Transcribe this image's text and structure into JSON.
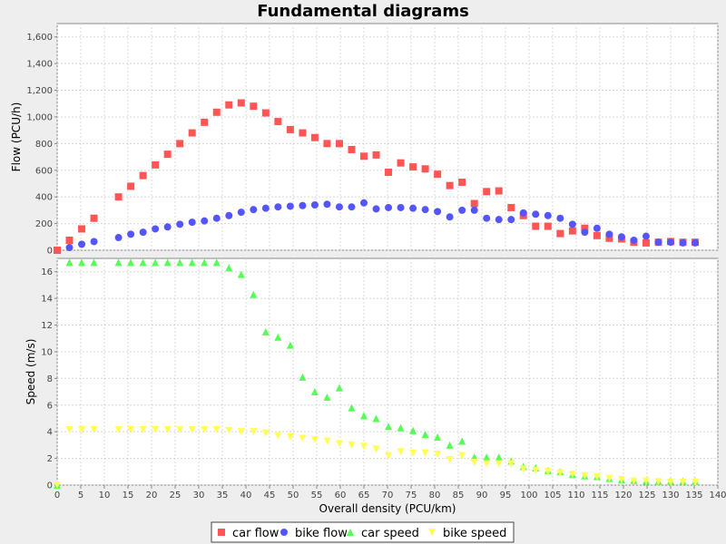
{
  "chart_data": {
    "title": "Fundamental diagrams",
    "type": "scatter",
    "xlabel": "Overall density (PCU/km)",
    "xlim": [
      0,
      140
    ],
    "xticks": [
      "0",
      "5",
      "10",
      "15",
      "20",
      "25",
      "30",
      "35",
      "40",
      "45",
      "50",
      "55",
      "60",
      "65",
      "70",
      "75",
      "80",
      "85",
      "90",
      "95",
      "100",
      "105",
      "110",
      "115",
      "120",
      "125",
      "130",
      "135",
      "140"
    ],
    "grid": true,
    "legend_position": "bottom",
    "panels": [
      {
        "ylabel": "Flow (PCU/h)",
        "ylim": [
          0,
          1700
        ],
        "yticks": [
          {
            "v": 0,
            "label": "0"
          },
          {
            "v": 200,
            "label": "200"
          },
          {
            "v": 400,
            "label": "400"
          },
          {
            "v": 600,
            "label": "600"
          },
          {
            "v": 800,
            "label": "800"
          },
          {
            "v": 1000,
            "label": "1,000"
          },
          {
            "v": 1200,
            "label": "1,200"
          },
          {
            "v": 1400,
            "label": "1,400"
          },
          {
            "v": 1600,
            "label": "1,600"
          }
        ],
        "series": [
          {
            "name": "car flow",
            "marker": "square",
            "color": "#FF5555",
            "x": [
              0,
              2.6,
              5.2,
              7.8,
              13,
              15.6,
              18.2,
              20.8,
              23.4,
              26,
              28.6,
              31.2,
              33.8,
              36.4,
              39,
              41.6,
              44.2,
              46.8,
              49.4,
              52,
              54.6,
              57.2,
              59.8,
              62.4,
              65,
              67.6,
              70.2,
              72.8,
              75.4,
              78,
              80.6,
              83.2,
              85.8,
              88.4,
              91,
              93.6,
              96.2,
              98.8,
              101.4,
              104,
              106.6,
              109.2,
              111.8,
              114.4,
              117,
              119.6,
              122.2,
              124.8,
              127.4,
              130,
              132.6,
              135.2
            ],
            "y": [
              0,
              75,
              160,
              240,
              400,
              480,
              560,
              640,
              720,
              800,
              880,
              960,
              1035,
              1090,
              1105,
              1080,
              1030,
              965,
              905,
              880,
              845,
              800,
              800,
              755,
              705,
              715,
              585,
              655,
              625,
              610,
              570,
              485,
              510,
              350,
              440,
              445,
              320,
              260,
              180,
              180,
              125,
              145,
              165,
              110,
              90,
              85,
              60,
              55,
              60,
              65,
              60,
              60
            ]
          },
          {
            "name": "bike flow",
            "marker": "circle",
            "color": "#5555FF",
            "x": [
              2.6,
              5.2,
              7.8,
              13,
              15.6,
              18.2,
              20.8,
              23.4,
              26,
              28.6,
              31.2,
              33.8,
              36.4,
              39,
              41.6,
              44.2,
              46.8,
              49.4,
              52,
              54.6,
              57.2,
              59.8,
              62.4,
              65,
              67.6,
              70.2,
              72.8,
              75.4,
              78,
              80.6,
              83.2,
              85.8,
              88.4,
              91,
              93.6,
              96.2,
              98.8,
              101.4,
              104,
              106.6,
              109.2,
              111.8,
              114.4,
              117,
              119.6,
              122.2,
              124.8,
              127.4,
              130,
              132.6,
              135.2
            ],
            "y": [
              20,
              45,
              65,
              95,
              120,
              135,
              160,
              175,
              195,
              210,
              220,
              240,
              260,
              285,
              305,
              315,
              325,
              330,
              335,
              340,
              345,
              325,
              325,
              355,
              310,
              320,
              320,
              315,
              305,
              290,
              250,
              300,
              300,
              240,
              230,
              230,
              280,
              270,
              260,
              240,
              195,
              135,
              165,
              120,
              100,
              75,
              105,
              60,
              60,
              55,
              55
            ]
          }
        ]
      },
      {
        "ylabel": "Speed (m/s)",
        "ylim": [
          0,
          17
        ],
        "yticks": [
          {
            "v": 0,
            "label": "0"
          },
          {
            "v": 2,
            "label": "2"
          },
          {
            "v": 4,
            "label": "4"
          },
          {
            "v": 6,
            "label": "6"
          },
          {
            "v": 8,
            "label": "8"
          },
          {
            "v": 10,
            "label": "10"
          },
          {
            "v": 12,
            "label": "12"
          },
          {
            "v": 14,
            "label": "14"
          },
          {
            "v": 16,
            "label": "16"
          }
        ],
        "series": [
          {
            "name": "car speed",
            "marker": "triangle",
            "color": "#55FF55",
            "x": [
              0,
              2.6,
              5.2,
              7.8,
              13,
              15.6,
              18.2,
              20.8,
              23.4,
              26,
              28.6,
              31.2,
              33.8,
              36.4,
              39,
              41.6,
              44.2,
              46.8,
              49.4,
              52,
              54.6,
              57.2,
              59.8,
              62.4,
              65,
              67.6,
              70.2,
              72.8,
              75.4,
              78,
              80.6,
              83.2,
              85.8,
              88.4,
              91,
              93.6,
              96.2,
              98.8,
              101.4,
              104,
              106.6,
              109.2,
              111.8,
              114.4,
              117,
              119.6,
              122.2,
              124.8,
              127.4,
              130,
              132.6,
              135.2
            ],
            "y": [
              0,
              16.7,
              16.7,
              16.7,
              16.7,
              16.7,
              16.7,
              16.7,
              16.7,
              16.7,
              16.7,
              16.7,
              16.7,
              16.3,
              15.8,
              14.3,
              11.5,
              11.1,
              10.5,
              8.1,
              7.0,
              6.6,
              7.3,
              5.8,
              5.2,
              5.0,
              4.4,
              4.3,
              4.1,
              3.8,
              3.6,
              3.0,
              3.3,
              2.1,
              2.1,
              2.1,
              1.8,
              1.4,
              1.3,
              1.1,
              1.0,
              0.8,
              0.7,
              0.65,
              0.5,
              0.4,
              0.35,
              0.3,
              0.3,
              0.3,
              0.3,
              0.3
            ]
          },
          {
            "name": "bike speed",
            "marker": "triangle-down",
            "color": "#FFFF55",
            "x": [
              0,
              2.6,
              5.2,
              7.8,
              13,
              15.6,
              18.2,
              20.8,
              23.4,
              26,
              28.6,
              31.2,
              33.8,
              36.4,
              39,
              41.6,
              44.2,
              46.8,
              49.4,
              52,
              54.6,
              57.2,
              59.8,
              62.4,
              65,
              67.6,
              70.2,
              72.8,
              75.4,
              78,
              80.6,
              83.2,
              85.8,
              88.4,
              91,
              93.6,
              96.2,
              98.8,
              101.4,
              104,
              106.6,
              109.2,
              111.8,
              114.4,
              117,
              119.6,
              122.2,
              124.8,
              127.4,
              130,
              132.6,
              135.2
            ],
            "y": [
              0,
              4.15,
              4.15,
              4.15,
              4.15,
              4.15,
              4.15,
              4.15,
              4.15,
              4.15,
              4.15,
              4.15,
              4.15,
              4.1,
              4.0,
              4.0,
              3.9,
              3.7,
              3.6,
              3.5,
              3.4,
              3.3,
              3.1,
              3.0,
              2.9,
              2.7,
              2.2,
              2.5,
              2.4,
              2.4,
              2.3,
              1.9,
              2.2,
              1.7,
              1.6,
              1.6,
              1.6,
              1.2,
              1.1,
              1.0,
              0.9,
              0.8,
              0.7,
              0.6,
              0.5,
              0.4,
              0.3,
              0.3,
              0.25,
              0.2,
              0.2,
              0.2
            ]
          }
        ]
      }
    ],
    "legend": [
      {
        "name": "car flow",
        "marker": "square",
        "color": "#FF5555"
      },
      {
        "name": "bike flow",
        "marker": "circle",
        "color": "#5555FF"
      },
      {
        "name": "car speed",
        "marker": "triangle",
        "color": "#55FF55"
      },
      {
        "name": "bike speed",
        "marker": "triangle-down",
        "color": "#FFFF55"
      }
    ]
  }
}
